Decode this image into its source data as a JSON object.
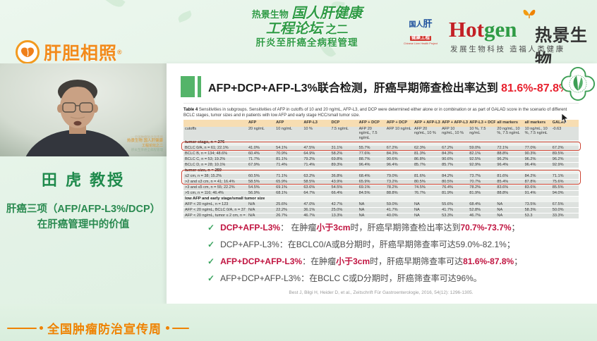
{
  "colors": {
    "accent_green": "#2f9b45",
    "brand_orange": "#f28b1c",
    "hotgen_red": "#c32026",
    "highlight_red": "#e8212e",
    "bullet_red": "#c01440",
    "table_header_bg": "#f7ddb2",
    "table_row_bg": "#dde1de",
    "box_outline_red": "#cc4433"
  },
  "header": {
    "left_logo": {
      "text": "肝胆相照",
      "reg_mark": "®"
    },
    "center": {
      "line1_small": "热景生物",
      "line1_big": "国人肝健康",
      "line2_big": "工程论坛",
      "line2_small": "之二",
      "line3": "肝炎至肝癌全病程管理"
    },
    "right": {
      "badge_line1": "国人",
      "badge_line2": "肝",
      "badge_line3": "健康工程",
      "badge_sub": "Chinese Liver Health Project",
      "hotgen_hot": "Hot",
      "hotgen_gen": "gen",
      "brand_cn": "热景生物",
      "slogan": "发展生物科技  造福人类健康"
    }
  },
  "speaker": {
    "name": "田  虎 教授",
    "topic_line1": "肝癌三项（AFP/AFP-L3%/DCP）",
    "topic_line2": "在肝癌管理中的价值",
    "watermark": [
      "— 全国肿瘤防治宣传周",
      "热景生物 国人肝健康",
      "工程论坛之二",
      "肝炎至肝癌全病程管理"
    ]
  },
  "slide": {
    "title_prefix": "AFP+DCP+AFP-L3%联合检测，肝癌早期筛查检出率达到 ",
    "title_highlight": "81.6%-87.8%",
    "check_glyph": "✓",
    "table": {
      "caption_bold": "Table 4",
      "caption_text": "  Sensitivities in subgroups. Sensitivities of AFP in cutoffs of 10 and 20 ng/mL, AFP-L3, and DCP were determined either alone or in combination or as part of GALAD score in the scenario of different BCLC stages, tumor sizes and in patients with low AFP and early stage HCC/small tumor size.",
      "columns": [
        "AFP",
        "AFP",
        "AFP-L3",
        "DCP",
        "AFP + DCP",
        "AFP + DCP",
        "AFP + AFP-L3",
        "AFP + AFP-L3",
        "AFP-L3 + DCP",
        "all markers",
        "all markers",
        "GALAD"
      ],
      "cutoffs_label": "cutoffs",
      "cutoffs": [
        "20 ng/mL",
        "10 ng/mL",
        "10 %",
        "7.5 ng/mL",
        "AFP 20 ng/mL, 7.5 ng/mL",
        "AFP 10 ng/mL",
        "AFP 20 ng/mL, 10 %",
        "AFP 10 ng/mL, 10 %",
        "10 %, 7.5 ng/mL",
        "20 ng/mL, 10 %, 7.5 ng/mL",
        "10 ng/mL, 10 %, 7.5 ng/mL",
        "-0.63"
      ],
      "sections": [
        {
          "header": "tumor stage, n = 276",
          "rows": [
            {
              "label": "BCLC 0/A, n = 61; 22.1%",
              "values": [
                "41.0%",
                "54.1%",
                "47.5%",
                "31.1%",
                "55.7%",
                "67.2%",
                "62.3%",
                "67.2%",
                "59.0%",
                "72.1%",
                "77.0%",
                "67.2%"
              ]
            },
            {
              "label": "BCLC B, n = 134; 48.6%",
              "values": [
                "60.4%",
                "70.9%",
                "64.9%",
                "58.2%",
                "77.6%",
                "84.3%",
                "81.3%",
                "84.3%",
                "82.1%",
                "88.8%",
                "90.3%",
                "89.5%"
              ]
            },
            {
              "label": "BCLC C, n = 53; 19.2%",
              "values": [
                "71.7%",
                "81.1%",
                "79.2%",
                "69.8%",
                "88.7%",
                "90.6%",
                "86.8%",
                "90.6%",
                "92.5%",
                "96.2%",
                "96.2%",
                "96.2%"
              ]
            },
            {
              "label": "BCLC D, n = 28; 10.1%",
              "values": [
                "67.9%",
                "71.4%",
                "71.4%",
                "89.3%",
                "96.4%",
                "96.4%",
                "85.7%",
                "85.7%",
                "92.9%",
                "96.4%",
                "96.4%",
                "92.9%"
              ]
            }
          ]
        },
        {
          "header": "tumor size, n = 250",
          "rows": [
            {
              "label": "≤2 cm, n = 38; 15.2%",
              "values": [
                "60.5%",
                "71.1%",
                "63.2%",
                "36.8%",
                "68.4%",
                "79.0%",
                "81.6%",
                "84.2%",
                "73.7%",
                "81.6%",
                "84.2%",
                "71.1%"
              ]
            },
            {
              "label": ">2 and ≤3 cm, n = 41; 16.4%",
              "values": [
                "58.5%",
                "65.9%",
                "58.5%",
                "43.9%",
                "65.9%",
                "73.2%",
                "80.5%",
                "80.5%",
                "70.7%",
                "85.4%",
                "87.8%",
                "75.6%"
              ]
            },
            {
              "label": ">3 and ≤5 cm, n = 55; 22.2%",
              "values": [
                "54.5%",
                "69.1%",
                "63.6%",
                "54.5%",
                "69.1%",
                "78.2%",
                "74.5%",
                "76.4%",
                "78.2%",
                "83.6%",
                "83.6%",
                "85.5%"
              ]
            },
            {
              "label": ">5 cm, n = 116; 46.4%",
              "values": [
                "56.9%",
                "68.1%",
                "64.7%",
                "66.4%",
                "84.5%",
                "88.8%",
                "76.7%",
                "81.9%",
                "81.9%",
                "88.8%",
                "91.4%",
                "94.0%"
              ]
            }
          ]
        },
        {
          "header": "low AFP and early stage/small tumor size",
          "rows": [
            {
              "label": "AFP < 20 ng/mL, n = 123",
              "values": [
                "N/A",
                "25.6%",
                "47.0%",
                "42.7%",
                "NA",
                "59.0%",
                "NA",
                "55.6%",
                "68.4%",
                "NA",
                "73.5%",
                "67.5%"
              ]
            },
            {
              "label": "AFP < 20 ng/mL, BCLC 0/A, n = 37",
              "values": [
                "N/A",
                "22.2%",
                "36.1%",
                "25.0%",
                "NA",
                "41.7%",
                "NA",
                "41.7%",
                "52.8%",
                "NA",
                "58.3%",
                "50.0%"
              ]
            },
            {
              "label": "AFP < 20 ng/mL, tumor ≤ 2 cm, n = 16",
              "values": [
                "N/A",
                "26.7%",
                "46.7%",
                "13.3%",
                "NA",
                "40.0%",
                "NA",
                "53.3%",
                "46.7%",
                "NA",
                "53.3",
                "33.3%"
              ]
            }
          ]
        }
      ]
    },
    "bullets": [
      {
        "segments": [
          {
            "text": "DCP+AFP-L3%",
            "bold": true,
            "red": true
          },
          {
            "text": "： 在肿瘤"
          },
          {
            "text": "小于3cm",
            "bold": true,
            "red": true
          },
          {
            "text": "时，肝癌早期筛查检出率达到"
          },
          {
            "text": "70.7%-73.7%",
            "bold": true,
            "red": true
          },
          {
            "text": "；"
          }
        ]
      },
      {
        "segments": [
          {
            "text": "DCP+AFP-L3%：在BCLC0/A或B分期时，肝癌早期筛查率可达59.0%-82.1%；"
          }
        ]
      },
      {
        "segments": [
          {
            "text": "AFP+DCP+AFP-L3%",
            "bold": true,
            "red": true
          },
          {
            "text": "：在肿瘤"
          },
          {
            "text": "小于3cm",
            "bold": true,
            "red": true
          },
          {
            "text": "时，肝癌早期筛查率可达"
          },
          {
            "text": "81.6%-87.8%",
            "bold": true,
            "red": true
          },
          {
            "text": "；"
          }
        ]
      },
      {
        "segments": [
          {
            "text": "AFP+DCP+AFP-L3%：在BCLC C或D分期时，肝癌筛查率可达96%。"
          }
        ]
      }
    ],
    "citation": "Best J, Bilgi H, Heider D, et al., Zeitschrift Für Gastroenterologie, 2016, 54(12): 1296-1305."
  },
  "footer": {
    "label": "全国肿瘤防治宣传周"
  }
}
